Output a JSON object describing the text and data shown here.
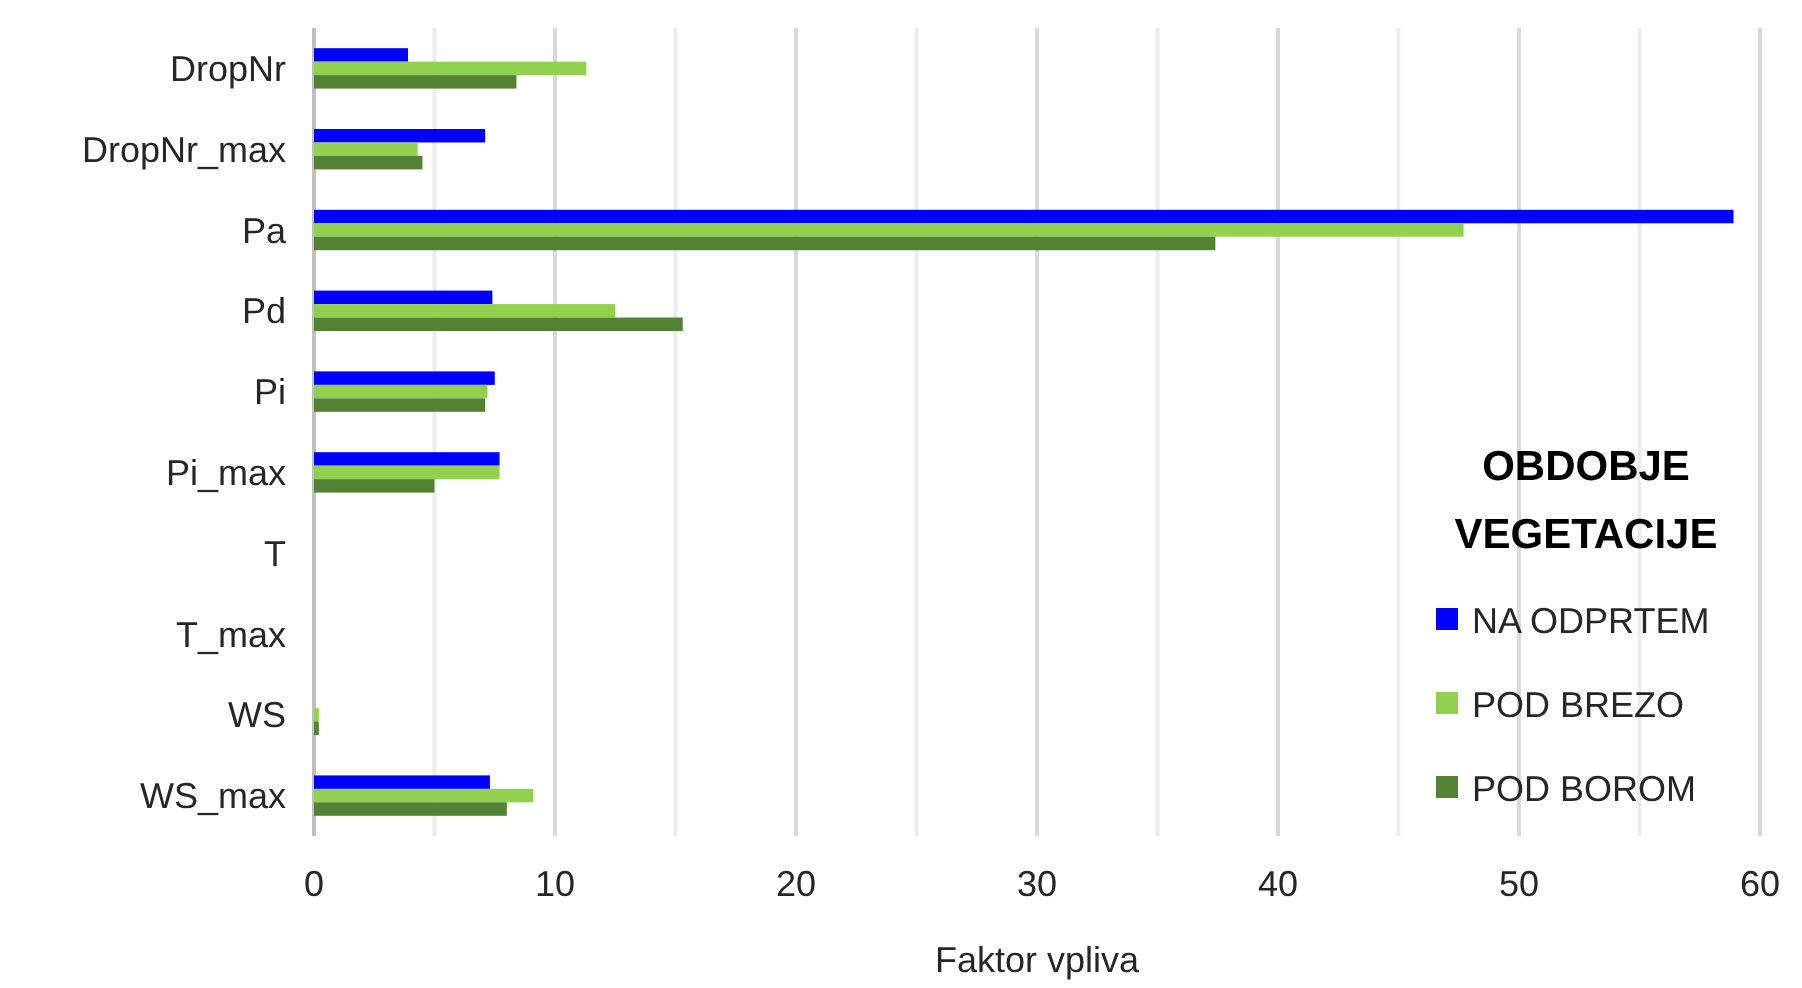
{
  "chart_data": {
    "type": "bar",
    "orientation": "horizontal",
    "xlabel": "Faktor vpliva",
    "legend_title": "OBDOBJE VEGETACIJE",
    "legend": "bottom right",
    "grid": "x",
    "categories": [
      "DropNr",
      "DropNr_max",
      "Pa",
      "Pd",
      "Pi",
      "Pi_max",
      "T",
      "T_max",
      "WS",
      "WS_max"
    ],
    "xlim": [
      0,
      60
    ],
    "xticks": [
      0,
      {
        "value": 5,
        "label": null
      },
      10,
      {
        "value": 15,
        "label": null
      },
      20,
      {
        "value": 25,
        "label": null
      },
      30,
      {
        "value": 35,
        "label": null
      },
      40,
      {
        "value": 45,
        "label": null
      },
      50,
      {
        "value": 55,
        "label": null
      },
      60
    ],
    "series": [
      {
        "name": "NA ODPRTEM",
        "color": "#0000ff",
        "values": [
          3.9,
          7.1,
          58.9,
          7.4,
          7.5,
          7.7,
          0,
          0,
          0,
          7.3
        ]
      },
      {
        "name": "POD BREZO",
        "color": "#92d050",
        "values": [
          11.3,
          4.3,
          47.7,
          12.5,
          7.2,
          7.7,
          0,
          0,
          0.2,
          9.1
        ]
      },
      {
        "name": "POD BOROM",
        "color": "#548235",
        "values": [
          8.4,
          4.5,
          37.4,
          15.3,
          7.1,
          5.0,
          0,
          0,
          0.2,
          8.0
        ]
      }
    ]
  }
}
